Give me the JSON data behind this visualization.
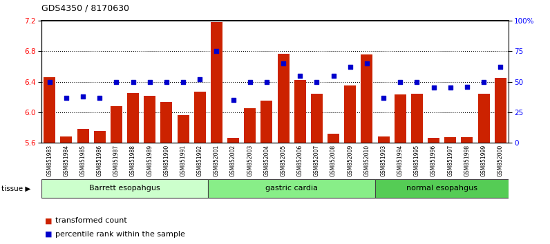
{
  "title": "GDS4350 / 8170630",
  "samples": [
    "GSM851983",
    "GSM851984",
    "GSM851985",
    "GSM851986",
    "GSM851987",
    "GSM851988",
    "GSM851989",
    "GSM851990",
    "GSM851991",
    "GSM851992",
    "GSM852001",
    "GSM852002",
    "GSM852003",
    "GSM852004",
    "GSM852005",
    "GSM852006",
    "GSM852007",
    "GSM852008",
    "GSM852009",
    "GSM852010",
    "GSM851993",
    "GSM851994",
    "GSM851995",
    "GSM851996",
    "GSM851997",
    "GSM851998",
    "GSM851999",
    "GSM852000"
  ],
  "bar_values": [
    6.46,
    5.68,
    5.78,
    5.75,
    6.08,
    6.25,
    6.22,
    6.13,
    5.96,
    6.27,
    7.18,
    5.66,
    6.05,
    6.15,
    6.77,
    6.42,
    6.24,
    5.72,
    6.35,
    6.76,
    5.68,
    6.23,
    6.24,
    5.66,
    5.67,
    5.67,
    6.24,
    6.45
  ],
  "percentile_values": [
    50,
    37,
    38,
    37,
    50,
    50,
    50,
    50,
    50,
    52,
    75,
    35,
    50,
    50,
    65,
    55,
    50,
    55,
    62,
    65,
    37,
    50,
    50,
    45,
    45,
    46,
    50,
    62
  ],
  "groups": [
    {
      "label": "Barrett esopahgus",
      "start": 0,
      "end": 10,
      "color": "#ccffcc"
    },
    {
      "label": "gastric cardia",
      "start": 10,
      "end": 20,
      "color": "#88ee88"
    },
    {
      "label": "normal esopahgus",
      "start": 20,
      "end": 28,
      "color": "#55cc55"
    }
  ],
  "ylim_left": [
    5.6,
    7.2
  ],
  "ylim_right": [
    0,
    100
  ],
  "yticks_left": [
    5.6,
    6.0,
    6.4,
    6.8,
    7.2
  ],
  "yticks_right": [
    0,
    25,
    50,
    75,
    100
  ],
  "ytick_labels_right": [
    "0",
    "25",
    "50",
    "75",
    "100%"
  ],
  "hlines": [
    6.0,
    6.4,
    6.8
  ],
  "bar_color": "#cc2200",
  "dot_color": "#0000cc",
  "bar_bottom": 5.6,
  "xtick_bg_color": "#d8d8d8",
  "legend_items": [
    {
      "label": "transformed count",
      "color": "#cc2200"
    },
    {
      "label": "percentile rank within the sample",
      "color": "#0000cc"
    }
  ]
}
